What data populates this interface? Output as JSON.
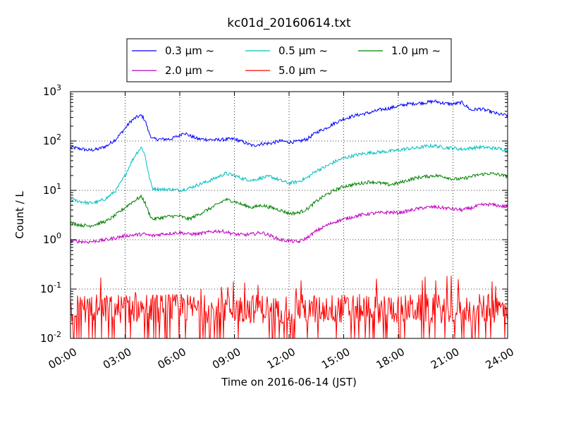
{
  "chart_data": {
    "type": "line",
    "title": "kc01d_20160614.txt",
    "xlabel": "Time on 2016-06-14 (JST)",
    "ylabel": "Count / L",
    "y_scale": "log",
    "ylim": [
      0.01,
      1000
    ],
    "x_range_hours": [
      0,
      24
    ],
    "x_tick_labels": [
      "00:00",
      "03:00",
      "06:00",
      "09:00",
      "12:00",
      "15:00",
      "18:00",
      "21:00",
      "24:00"
    ],
    "y_ticks": [
      {
        "base": "10",
        "exp": "-2"
      },
      {
        "base": "10",
        "exp": "-1"
      },
      {
        "base": "10",
        "exp": "0"
      },
      {
        "base": "10",
        "exp": "1"
      },
      {
        "base": "10",
        "exp": "2"
      },
      {
        "base": "10",
        "exp": "3"
      }
    ],
    "grid": true,
    "legend_position": "above plot, centered",
    "series": [
      {
        "name": "0.3 μm ~",
        "color": "#0000ff",
        "points": [
          [
            0,
            75
          ],
          [
            0.5,
            70
          ],
          [
            1,
            65
          ],
          [
            1.5,
            68
          ],
          [
            2,
            80
          ],
          [
            2.5,
            110
          ],
          [
            3,
            180
          ],
          [
            3.3,
            250
          ],
          [
            3.6,
            300
          ],
          [
            3.9,
            330
          ],
          [
            4.1,
            260
          ],
          [
            4.3,
            150
          ],
          [
            4.5,
            110
          ],
          [
            5,
            108
          ],
          [
            5.5,
            110
          ],
          [
            6,
            130
          ],
          [
            6.2,
            150
          ],
          [
            6.5,
            130
          ],
          [
            7,
            110
          ],
          [
            8,
            105
          ],
          [
            9,
            110
          ],
          [
            9.5,
            95
          ],
          [
            10,
            80
          ],
          [
            10.5,
            88
          ],
          [
            11,
            90
          ],
          [
            11.5,
            100
          ],
          [
            12,
            95
          ],
          [
            12.5,
            97
          ],
          [
            13,
            110
          ],
          [
            13.5,
            150
          ],
          [
            14,
            180
          ],
          [
            14.5,
            230
          ],
          [
            15,
            280
          ],
          [
            15.5,
            320
          ],
          [
            16,
            350
          ],
          [
            16.5,
            380
          ],
          [
            17,
            430
          ],
          [
            17.5,
            460
          ],
          [
            18,
            510
          ],
          [
            18.5,
            560
          ],
          [
            19,
            580
          ],
          [
            19.5,
            600
          ],
          [
            20,
            640
          ],
          [
            20.5,
            580
          ],
          [
            21,
            560
          ],
          [
            21.5,
            600
          ],
          [
            22,
            420
          ],
          [
            22.5,
            450
          ],
          [
            23,
            400
          ],
          [
            23.5,
            350
          ],
          [
            24,
            330
          ]
        ]
      },
      {
        "name": "0.5 μm ~",
        "color": "#00bfbf",
        "points": [
          [
            0,
            6.5
          ],
          [
            0.5,
            6
          ],
          [
            1,
            5.5
          ],
          [
            1.5,
            5.8
          ],
          [
            2,
            7
          ],
          [
            2.5,
            10
          ],
          [
            3,
            20
          ],
          [
            3.3,
            35
          ],
          [
            3.6,
            55
          ],
          [
            3.9,
            75
          ],
          [
            4.1,
            50
          ],
          [
            4.3,
            20
          ],
          [
            4.5,
            11
          ],
          [
            5,
            10.5
          ],
          [
            5.5,
            10.5
          ],
          [
            6,
            10
          ],
          [
            6.5,
            11
          ],
          [
            7,
            13
          ],
          [
            7.5,
            15
          ],
          [
            8,
            18
          ],
          [
            8.5,
            22
          ],
          [
            9,
            20
          ],
          [
            9.5,
            17
          ],
          [
            10,
            16
          ],
          [
            10.5,
            18
          ],
          [
            11,
            19
          ],
          [
            11.5,
            16
          ],
          [
            12,
            14
          ],
          [
            12.5,
            15
          ],
          [
            13,
            18
          ],
          [
            13.5,
            25
          ],
          [
            14,
            30
          ],
          [
            14.5,
            38
          ],
          [
            15,
            45
          ],
          [
            15.5,
            50
          ],
          [
            16,
            55
          ],
          [
            16.5,
            58
          ],
          [
            17,
            60
          ],
          [
            17.5,
            62
          ],
          [
            18,
            65
          ],
          [
            18.5,
            70
          ],
          [
            19,
            72
          ],
          [
            19.5,
            78
          ],
          [
            20,
            80
          ],
          [
            20.5,
            74
          ],
          [
            21,
            72
          ],
          [
            21.5,
            68
          ],
          [
            22,
            72
          ],
          [
            22.5,
            75
          ],
          [
            23,
            73
          ],
          [
            23.5,
            70
          ],
          [
            24,
            65
          ]
        ]
      },
      {
        "name": "1.0 μm ~",
        "color": "#008000",
        "points": [
          [
            0,
            2.2
          ],
          [
            0.5,
            2
          ],
          [
            1,
            1.9
          ],
          [
            1.5,
            2.1
          ],
          [
            2,
            2.4
          ],
          [
            2.5,
            3.2
          ],
          [
            3,
            4.5
          ],
          [
            3.3,
            5.5
          ],
          [
            3.6,
            6.5
          ],
          [
            3.9,
            7.5
          ],
          [
            4.1,
            5.5
          ],
          [
            4.3,
            3.5
          ],
          [
            4.5,
            2.6
          ],
          [
            5,
            2.8
          ],
          [
            5.5,
            3
          ],
          [
            6,
            3
          ],
          [
            6.5,
            2.6
          ],
          [
            7,
            3.2
          ],
          [
            7.5,
            4
          ],
          [
            8,
            5
          ],
          [
            8.5,
            6.5
          ],
          [
            9,
            6
          ],
          [
            9.5,
            5
          ],
          [
            10,
            4.5
          ],
          [
            10.5,
            5
          ],
          [
            11,
            4.5
          ],
          [
            11.5,
            4
          ],
          [
            12,
            3.4
          ],
          [
            12.5,
            3.5
          ],
          [
            13,
            4.2
          ],
          [
            13.5,
            6
          ],
          [
            14,
            8
          ],
          [
            14.5,
            10
          ],
          [
            15,
            12
          ],
          [
            15.5,
            13
          ],
          [
            16,
            14
          ],
          [
            16.5,
            15
          ],
          [
            17,
            14
          ],
          [
            17.5,
            13
          ],
          [
            18,
            14
          ],
          [
            18.5,
            16
          ],
          [
            19,
            18
          ],
          [
            19.5,
            19
          ],
          [
            20,
            20
          ],
          [
            20.5,
            19
          ],
          [
            21,
            17
          ],
          [
            21.5,
            17
          ],
          [
            22,
            19
          ],
          [
            22.5,
            21
          ],
          [
            23,
            22
          ],
          [
            23.5,
            21
          ],
          [
            24,
            19
          ]
        ]
      },
      {
        "name": "2.0 μm ~",
        "color": "#bf00bf",
        "points": [
          [
            0,
            0.95
          ],
          [
            0.5,
            0.92
          ],
          [
            1,
            0.9
          ],
          [
            1.5,
            0.95
          ],
          [
            2,
            1.0
          ],
          [
            2.5,
            1.1
          ],
          [
            3,
            1.2
          ],
          [
            3.5,
            1.25
          ],
          [
            4,
            1.3
          ],
          [
            4.5,
            1.2
          ],
          [
            5,
            1.3
          ],
          [
            5.5,
            1.35
          ],
          [
            6,
            1.4
          ],
          [
            6.5,
            1.3
          ],
          [
            7,
            1.3
          ],
          [
            7.5,
            1.4
          ],
          [
            8,
            1.5
          ],
          [
            8.5,
            1.45
          ],
          [
            9,
            1.3
          ],
          [
            9.5,
            1.25
          ],
          [
            10,
            1.3
          ],
          [
            10.5,
            1.4
          ],
          [
            11,
            1.2
          ],
          [
            11.5,
            1.0
          ],
          [
            12,
            0.95
          ],
          [
            12.5,
            0.9
          ],
          [
            13,
            1.1
          ],
          [
            13.5,
            1.5
          ],
          [
            14,
            1.9
          ],
          [
            14.5,
            2.3
          ],
          [
            15,
            2.6
          ],
          [
            15.5,
            2.9
          ],
          [
            16,
            3.2
          ],
          [
            16.5,
            3.4
          ],
          [
            17,
            3.5
          ],
          [
            17.5,
            3.6
          ],
          [
            18,
            3.5
          ],
          [
            18.5,
            3.8
          ],
          [
            19,
            4.2
          ],
          [
            19.5,
            4.5
          ],
          [
            20,
            4.6
          ],
          [
            20.5,
            4.4
          ],
          [
            21,
            4.2
          ],
          [
            21.5,
            4.0
          ],
          [
            22,
            4.4
          ],
          [
            22.5,
            5
          ],
          [
            23,
            5.2
          ],
          [
            23.5,
            4.9
          ],
          [
            24,
            4.6
          ]
        ]
      },
      {
        "name": "5.0 μm ~",
        "color": "#ff0000",
        "points": [
          [
            0,
            0.04
          ],
          [
            0.5,
            0.04
          ],
          [
            1,
            0.04
          ],
          [
            1.5,
            0.04
          ],
          [
            2,
            0.04
          ],
          [
            2.5,
            0.04
          ],
          [
            3,
            0.04
          ],
          [
            3.5,
            0.04
          ],
          [
            4,
            0.04
          ],
          [
            4.5,
            0.04
          ],
          [
            5,
            0.04
          ],
          [
            5.5,
            0.04
          ],
          [
            6,
            0.04
          ],
          [
            6.5,
            0.04
          ],
          [
            7,
            0.04
          ],
          [
            7.5,
            0.04
          ],
          [
            8,
            0.04
          ],
          [
            8.5,
            0.04
          ],
          [
            9,
            0.04
          ],
          [
            9.5,
            0.04
          ],
          [
            10,
            0.04
          ],
          [
            10.5,
            0.04
          ],
          [
            11,
            0.04
          ],
          [
            11.5,
            0.04
          ],
          [
            12,
            0.04
          ],
          [
            12.5,
            0.04
          ],
          [
            13,
            0.04
          ],
          [
            13.5,
            0.04
          ],
          [
            14,
            0.04
          ],
          [
            14.5,
            0.04
          ],
          [
            15,
            0.04
          ],
          [
            15.5,
            0.04
          ],
          [
            16,
            0.04
          ],
          [
            16.5,
            0.04
          ],
          [
            17,
            0.04
          ],
          [
            17.5,
            0.04
          ],
          [
            18,
            0.04
          ],
          [
            18.5,
            0.04
          ],
          [
            19,
            0.04
          ],
          [
            19.5,
            0.04
          ],
          [
            20,
            0.04
          ],
          [
            20.5,
            0.04
          ],
          [
            21,
            0.04
          ],
          [
            21.5,
            0.04
          ],
          [
            22,
            0.04
          ],
          [
            22.5,
            0.04
          ],
          [
            23,
            0.04
          ],
          [
            23.5,
            0.04
          ],
          [
            24,
            0.04
          ]
        ],
        "noise": {
          "min": 0.01,
          "max": 0.2,
          "typical": 0.04
        }
      }
    ]
  }
}
